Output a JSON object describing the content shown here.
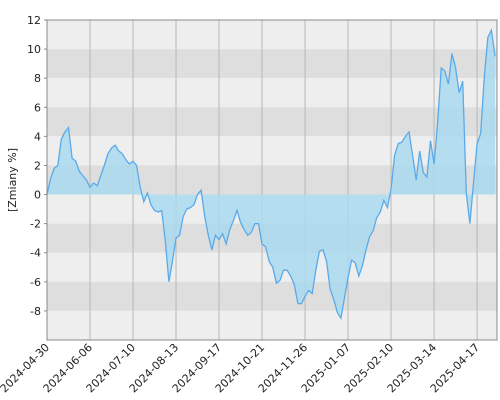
{
  "chart_data": {
    "type": "area",
    "y_label": "[Zmiany %]",
    "categories": [
      "2024-04-30",
      null,
      null,
      null,
      null,
      null,
      null,
      null,
      null,
      null,
      null,
      null,
      "2024-06-06",
      null,
      null,
      null,
      null,
      null,
      null,
      null,
      null,
      null,
      null,
      null,
      "2024-07-10",
      null,
      null,
      null,
      null,
      null,
      null,
      null,
      null,
      null,
      null,
      null,
      "2024-08-13",
      null,
      null,
      null,
      null,
      null,
      null,
      null,
      null,
      null,
      null,
      null,
      "2024-09-17",
      null,
      null,
      null,
      null,
      null,
      null,
      null,
      null,
      null,
      null,
      null,
      "2024-10-21",
      null,
      null,
      null,
      null,
      null,
      null,
      null,
      null,
      null,
      null,
      null,
      "2024-11-26",
      null,
      null,
      null,
      null,
      null,
      null,
      null,
      null,
      null,
      null,
      null,
      "2025-01-07",
      null,
      null,
      null,
      null,
      null,
      null,
      null,
      null,
      null,
      null,
      null,
      "2025-02-10",
      null,
      null,
      null,
      null,
      null,
      null,
      null,
      null,
      null,
      null,
      null,
      "2025-03-14",
      null,
      null,
      null,
      null,
      null,
      null,
      null,
      null,
      null,
      null,
      null,
      "2025-04-17",
      null,
      null,
      null,
      null,
      null
    ],
    "values": [
      0,
      1.1,
      1.8,
      2,
      3.8,
      4.3,
      4.6,
      2.5,
      2.3,
      1.6,
      1.3,
      1,
      0.5,
      0.8,
      0.6,
      1.3,
      2,
      2.8,
      3.2,
      3.4,
      3,
      2.8,
      2.4,
      2.1,
      2.3,
      2,
      0.5,
      -0.5,
      0.1,
      -0.7,
      -1.1,
      -1.2,
      -1.1,
      -3.2,
      -6,
      -4.6,
      -3,
      -2.8,
      -1.5,
      -1,
      -0.9,
      -0.7,
      0,
      0.3,
      -1.5,
      -2.8,
      -3.8,
      -2.8,
      -3.1,
      -2.7,
      -3.4,
      -2.4,
      -1.8,
      -1.1,
      -1.9,
      -2.4,
      -2.8,
      -2.6,
      -2,
      -2,
      -3.4,
      -3.6,
      -4.6,
      -5,
      -6.1,
      -5.9,
      -5.2,
      -5.2,
      -5.6,
      -6.2,
      -7.5,
      -7.5,
      -7,
      -6.6,
      -6.8,
      -5.2,
      -3.9,
      -3.8,
      -4.6,
      -6.5,
      -7.2,
      -8.1,
      -8.5,
      -7.1,
      -5.7,
      -4.5,
      -4.7,
      -5.6,
      -4.9,
      -3.8,
      -2.9,
      -2.5,
      -1.6,
      -1.2,
      -0.4,
      -0.9,
      0.4,
      2.7,
      3.5,
      3.6,
      4,
      4.3,
      2.7,
      1,
      3,
      1.5,
      1.2,
      3.7,
      2.1,
      5,
      8.7,
      8.5,
      7.6,
      9.7,
      8.7,
      7,
      7.8,
      0.1,
      -2,
      0.8,
      3.5,
      4.2,
      8,
      10.8,
      11.3,
      9.5
    ],
    "line_color": "#5aaaea",
    "fill_color": "#a9d9ee",
    "ylim": [
      -10,
      12
    ],
    "yticks": [
      -8,
      -6,
      -4,
      -2,
      0,
      2,
      4,
      6,
      8,
      10,
      12
    ],
    "grid": true
  }
}
